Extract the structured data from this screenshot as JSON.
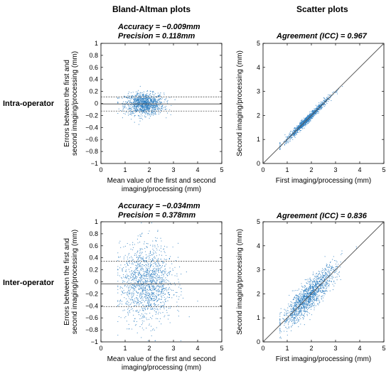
{
  "headers": {
    "col_left": "Bland-Altman plots",
    "col_right": "Scatter plots",
    "row_top": "Intra-operator",
    "row_bottom": "Inter-operator"
  },
  "colors": {
    "points": "#2f7fc1",
    "lines": "#555555"
  },
  "chart_data": [
    {
      "type": "scatter",
      "plot": "bland-altman",
      "subtitle_lines": [
        "Accuracy = −0.009mm",
        "Precision = 0.118mm"
      ],
      "xlabel": [
        "Mean value of the first and second",
        "imaging/processing (mm)"
      ],
      "ylabel": [
        "Errors between the first and",
        "second imaging/processing (mm)"
      ],
      "xlim": [
        0,
        5
      ],
      "ylim": [
        -1,
        1
      ],
      "xticks": [
        "0",
        "1",
        "2",
        "3",
        "4",
        "5"
      ],
      "yticks": [
        "1",
        "0.8",
        "0.6",
        "0.4",
        "0.2",
        "0",
        "−0.2",
        "−0.4",
        "−0.6",
        "−0.8",
        "−1"
      ],
      "mean_line": -0.009,
      "limit_lines": [
        0.109,
        -0.127
      ],
      "cloud": {
        "n": 1100,
        "x_range": [
          0.7,
          3.6
        ],
        "x_center": 1.8,
        "x_spread": 0.4,
        "y_center": -0.01,
        "y_spread": 0.09,
        "y_clip": [
          -0.35,
          0.35
        ]
      }
    },
    {
      "type": "scatter",
      "plot": "agreement",
      "subtitle_lines": [
        "Agreement (ICC) = 0.967"
      ],
      "xlabel": [
        "First imaging/processing (mm)"
      ],
      "ylabel": [
        "Second imaging/processing (mm)"
      ],
      "xlim": [
        0,
        5
      ],
      "ylim": [
        0,
        5
      ],
      "xticks": [
        "0",
        "1",
        "2",
        "3",
        "4",
        "5"
      ],
      "yticks": [
        "5",
        "4",
        "3",
        "2",
        "1",
        "0"
      ],
      "identity_line": [
        [
          0,
          0
        ],
        [
          5,
          5
        ]
      ],
      "cloud": {
        "n": 1100,
        "x_range": [
          0.7,
          4.0
        ],
        "x_center": 1.8,
        "x_spread": 0.45,
        "y_offset": 0.0,
        "y_spread": 0.08
      }
    },
    {
      "type": "scatter",
      "plot": "bland-altman",
      "subtitle_lines": [
        "Accuracy = −0.034mm",
        "Precision = 0.378mm"
      ],
      "xlabel": [
        "Mean value of the first and second",
        "imaging/processing (mm)"
      ],
      "ylabel": [
        "Errors between the first and",
        "second imaging/processing (mm)"
      ],
      "xlim": [
        0,
        5
      ],
      "ylim": [
        -1,
        1
      ],
      "xticks": [
        "0",
        "1",
        "2",
        "3",
        "4",
        "5"
      ],
      "yticks": [
        "1",
        "0.8",
        "0.6",
        "0.4",
        "0.2",
        "0",
        "−0.2",
        "−0.4",
        "−0.6",
        "−0.8",
        "−1"
      ],
      "mean_line": -0.034,
      "limit_lines": [
        0.344,
        -0.412
      ],
      "cloud": {
        "n": 1400,
        "x_range": [
          0.7,
          4.0
        ],
        "x_center": 1.9,
        "x_spread": 0.55,
        "y_center": -0.03,
        "y_spread": 0.32,
        "y_clip": [
          -0.98,
          0.98
        ]
      }
    },
    {
      "type": "scatter",
      "plot": "agreement",
      "subtitle_lines": [
        "Agreement (ICC) = 0.836"
      ],
      "xlabel": [
        "First imaging/processing (mm)"
      ],
      "ylabel": [
        "Second imaging/processing (mm)"
      ],
      "xlim": [
        0,
        5
      ],
      "ylim": [
        0,
        5
      ],
      "xticks": [
        "0",
        "1",
        "2",
        "3",
        "4",
        "5"
      ],
      "yticks": [
        "5",
        "4",
        "3",
        "2",
        "1",
        "0"
      ],
      "identity_line": [
        [
          0,
          0
        ],
        [
          5,
          5
        ]
      ],
      "cloud": {
        "n": 1400,
        "x_range": [
          0.7,
          4.1
        ],
        "x_center": 1.9,
        "x_spread": 0.55,
        "y_offset": 0.0,
        "y_spread": 0.3
      }
    }
  ]
}
